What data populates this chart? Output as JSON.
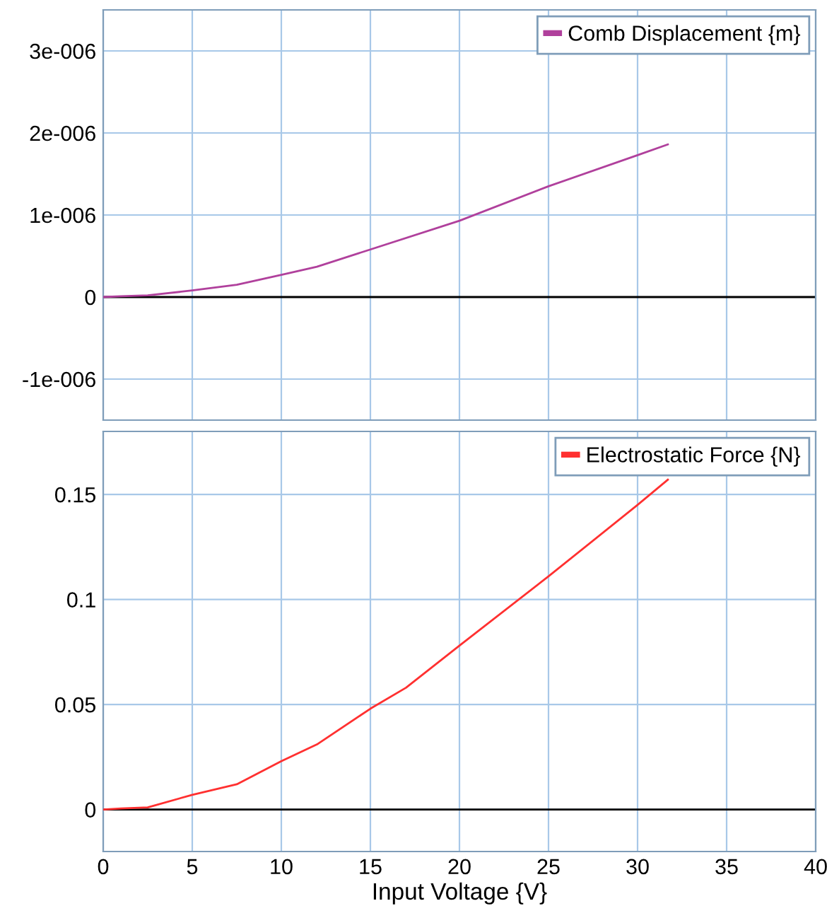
{
  "chart_data": [
    {
      "type": "line",
      "x": [
        0,
        1,
        2.5,
        5,
        7.5,
        10,
        12,
        15,
        20,
        25,
        30,
        31.7
      ],
      "series": [
        {
          "name": "Comb Displacement {m}",
          "color": "#b0409c",
          "values": [
            0,
            1e-08,
            2e-08,
            8e-08,
            1.5e-07,
            2.7e-07,
            3.7e-07,
            5.8e-07,
            9.3e-07,
            1.35e-06,
            1.73e-06,
            1.86e-06
          ]
        }
      ],
      "xlim": [
        0,
        40
      ],
      "xticks": [
        0,
        5,
        10,
        15,
        20,
        25,
        30,
        35,
        40
      ],
      "ylim": [
        -1.5e-06,
        3.5e-06
      ],
      "yticks": [
        {
          "value": -1e-06,
          "label": "-1e-006"
        },
        0,
        {
          "value": 1e-06,
          "label": "1e-006"
        },
        {
          "value": 2e-06,
          "label": "2e-006"
        },
        {
          "value": 3e-06,
          "label": "3e-006"
        }
      ],
      "tick_labels": "y",
      "grid": true,
      "legend": "top right",
      "marker": "none",
      "line_style": "solid",
      "ref_lines": [
        {
          "axis": "y",
          "value": 0,
          "color": "#000000"
        }
      ]
    },
    {
      "type": "line",
      "x": [
        0,
        1,
        2.5,
        5,
        7.5,
        10,
        12,
        15,
        17,
        20,
        25,
        30,
        31.7
      ],
      "series": [
        {
          "name": "Electrostatic Force {N}",
          "color": "#ff3030",
          "values": [
            0,
            0.0005,
            0.001,
            0.007,
            0.012,
            0.023,
            0.031,
            0.048,
            0.058,
            0.078,
            0.111,
            0.145,
            0.157
          ]
        }
      ],
      "xlabel": "Input Voltage {V}",
      "xlim": [
        0,
        40
      ],
      "xticks": [
        0,
        5,
        10,
        15,
        20,
        25,
        30,
        35,
        40
      ],
      "ylim": [
        -0.02,
        0.18
      ],
      "yticks": [
        0,
        0.05,
        0.1,
        0.15
      ],
      "grid": true,
      "legend": "top right",
      "marker": "none",
      "line_style": "solid",
      "ref_lines": [
        {
          "axis": "y",
          "value": 0,
          "color": "#000000"
        }
      ]
    }
  ]
}
